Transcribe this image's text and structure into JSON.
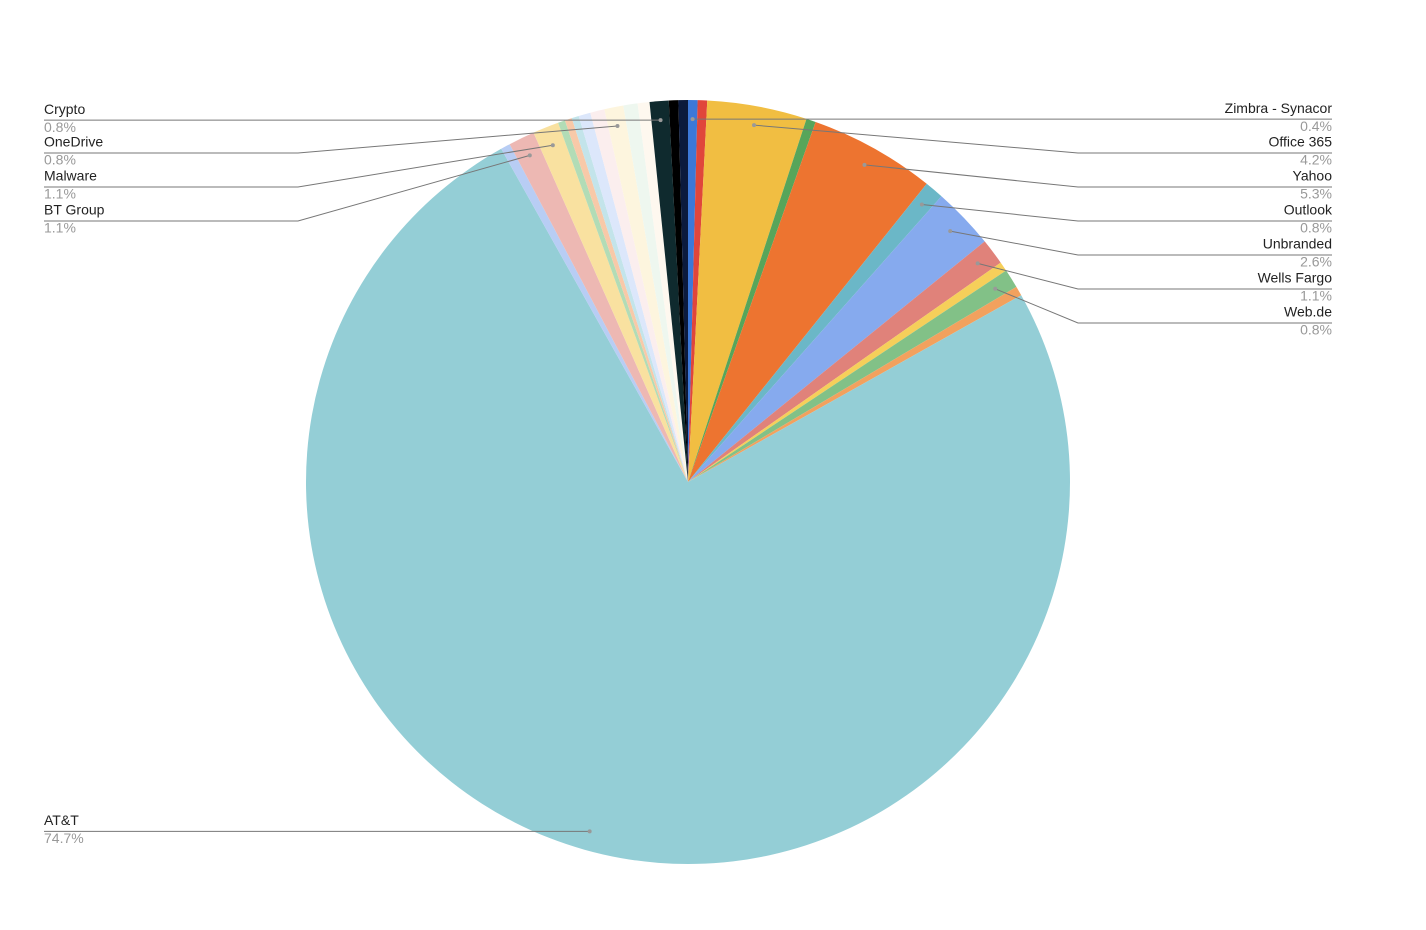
{
  "chart_data": {
    "type": "pie",
    "categories": [
      "Zimbra - Synacor",
      null,
      "Office 365",
      null,
      "Yahoo",
      "Outlook",
      "Unbranded",
      "Wells Fargo",
      null,
      "Web.de",
      null,
      "AT&T",
      null,
      "BT Group",
      "Malware",
      null,
      null,
      null,
      null,
      null,
      "OneDrive",
      null,
      null,
      "Crypto",
      null,
      null
    ],
    "values": [
      0.4,
      0.4,
      4.2,
      0.4,
      5.3,
      0.8,
      2.6,
      1.1,
      0.4,
      0.8,
      0.4,
      74.7,
      0.4,
      1.1,
      1.1,
      0.3,
      0.3,
      0.3,
      0.5,
      0.6,
      0.8,
      0.6,
      0.5,
      0.8,
      0.4,
      0.4
    ],
    "value_labels": [
      "0.4%",
      null,
      "4.2%",
      null,
      "5.3%",
      "0.8%",
      "2.6%",
      "1.1%",
      null,
      "0.8%",
      null,
      "74.7%",
      null,
      "1.1%",
      "1.1%",
      null,
      null,
      null,
      null,
      null,
      "0.8%",
      null,
      null,
      "0.8%",
      null,
      null
    ],
    "colors": [
      "#3c78d8",
      "#e0463b",
      "#f1be42",
      "#57a55a",
      "#ed7430",
      "#6bb7c7",
      "#86aaee",
      "#e0827a",
      "#f6cf5a",
      "#82c187",
      "#f2a15e",
      "#94ced6",
      "#b8cdf4",
      "#edb8b3",
      "#f9e1a0",
      "#b2dcb6",
      "#f8c9a8",
      "#c3e4ea",
      "#dce7fb",
      "#fbeeee",
      "#fdf5de",
      "#eef7ef",
      "#fef8ef",
      "#0f2a2e",
      "#000000",
      "#0b1a3d"
    ]
  }
}
